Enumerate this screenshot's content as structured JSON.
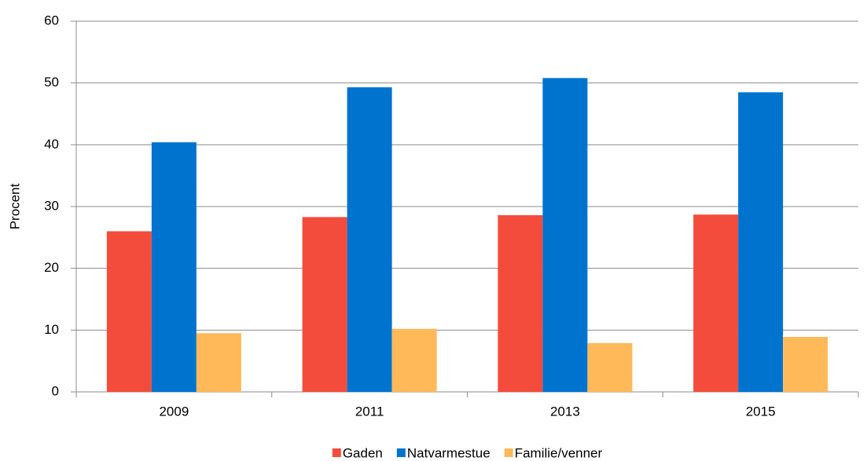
{
  "chart_data": {
    "type": "bar",
    "y_label": "Procent",
    "categories": [
      "2009",
      "2011",
      "2013",
      "2015"
    ],
    "series": [
      {
        "name": "Gaden",
        "color": "#f44c3c",
        "values": [
          26.0,
          28.3,
          28.6,
          28.7
        ]
      },
      {
        "name": "Natvarmestue",
        "color": "#0073cf",
        "values": [
          40.4,
          49.3,
          50.8,
          48.5
        ]
      },
      {
        "name": "Familie/venner",
        "color": "#ffb958",
        "values": [
          9.5,
          10.2,
          7.9,
          8.9
        ]
      }
    ],
    "ylim": [
      0,
      60
    ],
    "yticks": [
      0,
      10,
      20,
      30,
      40,
      50,
      60
    ],
    "grid": true,
    "legend": "bottom"
  }
}
